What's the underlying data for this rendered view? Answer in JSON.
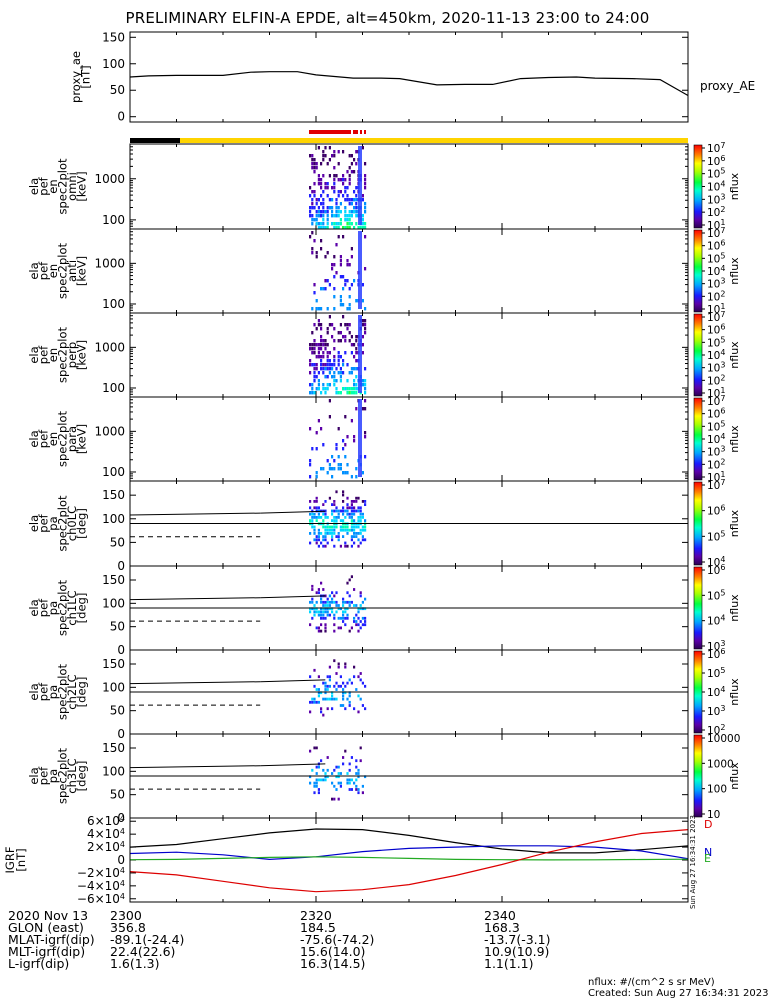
{
  "title": "PRELIMINARY ELFIN-A EPDE, alt=450km, 2020-11-13 23:00 to 24:00",
  "chart_data": {
    "type": "line",
    "time_axis": {
      "start": "2020-11-13 23:00",
      "end": "2020-11-14 00:00",
      "tick_labels": [
        "2300",
        "2320",
        "2340"
      ]
    },
    "panels": [
      {
        "id": "proxy_ae",
        "type": "line",
        "ylabel_lines": [
          "proxy_ae",
          "[nT]"
        ],
        "yticks": [
          "0",
          "50",
          "100",
          "150"
        ],
        "ylim": [
          -10,
          160
        ],
        "series": [
          {
            "name": "proxy_AE",
            "x_min": [
              0,
              2,
              5,
              10,
              13,
              15,
              18,
              20,
              24,
              27,
              29,
              33,
              36,
              39,
              42,
              45,
              48,
              50,
              54,
              57,
              60
            ],
            "y": [
              75,
              77,
              78,
              78,
              84,
              85,
              85,
              79,
              73,
              73,
              72,
              60,
              61,
              61,
              72,
              74,
              75,
              73,
              72,
              70,
              40
            ]
          }
        ]
      },
      {
        "id": "en-omni",
        "type": "heatmap",
        "ylabel_lines": [
          "ela",
          "pef",
          "en",
          "spec2plot",
          "omni",
          "[keV]"
        ],
        "yticks": [
          "100",
          "1000"
        ],
        "yscale": "log",
        "ylim": [
          60,
          7000
        ],
        "colorbar": {
          "label": "nflux",
          "ticks": [
            "10^1",
            "10^2",
            "10^3",
            "10^4",
            "10^5",
            "10^6",
            "10^7"
          ]
        }
      },
      {
        "id": "en-anti",
        "type": "heatmap",
        "ylabel_lines": [
          "ela",
          "pef",
          "en",
          "spec2plot",
          "anti",
          "[keV]"
        ],
        "yticks": [
          "100",
          "1000"
        ],
        "yscale": "log",
        "ylim": [
          60,
          7000
        ],
        "colorbar": {
          "label": "nflux",
          "ticks": [
            "10^1",
            "10^2",
            "10^3",
            "10^4",
            "10^5",
            "10^6",
            "10^7"
          ]
        }
      },
      {
        "id": "en-perp",
        "type": "heatmap",
        "ylabel_lines": [
          "ela",
          "pef",
          "en",
          "spec2plot",
          "perp",
          "[keV]"
        ],
        "yticks": [
          "100",
          "1000"
        ],
        "yscale": "log",
        "ylim": [
          60,
          7000
        ],
        "colorbar": {
          "label": "nflux",
          "ticks": [
            "10^1",
            "10^2",
            "10^3",
            "10^4",
            "10^5",
            "10^6",
            "10^7"
          ]
        }
      },
      {
        "id": "en-para",
        "type": "heatmap",
        "ylabel_lines": [
          "ela",
          "pef",
          "en",
          "spec2plot",
          "para",
          "[keV]"
        ],
        "yticks": [
          "100",
          "1000"
        ],
        "yscale": "log",
        "ylim": [
          60,
          7000
        ],
        "colorbar": {
          "label": "nflux",
          "ticks": [
            "10^1",
            "10^2",
            "10^3",
            "10^4",
            "10^5",
            "10^6",
            "10^7"
          ]
        }
      },
      {
        "id": "pa-ch0",
        "type": "heatmap",
        "ylabel_lines": [
          "ela",
          "pef",
          "pa",
          "spec2plot",
          "ch0LC",
          "[deg]"
        ],
        "yticks": [
          "0",
          "50",
          "100",
          "150"
        ],
        "ylim": [
          0,
          180
        ],
        "colorbar": {
          "label": "nflux",
          "ticks": [
            "10^4",
            "10^5",
            "10^6",
            "10^7"
          ]
        }
      },
      {
        "id": "pa-ch1",
        "type": "heatmap",
        "ylabel_lines": [
          "ela",
          "pef",
          "pa",
          "spec2plot",
          "ch1LC",
          "[deg]"
        ],
        "yticks": [
          "0",
          "50",
          "100",
          "150"
        ],
        "ylim": [
          0,
          180
        ],
        "colorbar": {
          "label": "nflux",
          "ticks": [
            "10^3",
            "10^4",
            "10^5",
            "10^6"
          ]
        }
      },
      {
        "id": "pa-ch2",
        "type": "heatmap",
        "ylabel_lines": [
          "ela",
          "pef",
          "pa",
          "spec2plot",
          "ch2LC",
          "[deg]"
        ],
        "yticks": [
          "0",
          "50",
          "100",
          "150"
        ],
        "ylim": [
          0,
          180
        ],
        "colorbar": {
          "label": "nflux",
          "ticks": [
            "10^2",
            "10^3",
            "10^4",
            "10^5",
            "10^6"
          ]
        }
      },
      {
        "id": "pa-ch3",
        "type": "heatmap",
        "ylabel_lines": [
          "ela",
          "pef",
          "pa",
          "spec2plot",
          "ch3LC",
          "[deg]"
        ],
        "yticks": [
          "0",
          "50",
          "100",
          "150"
        ],
        "ylim": [
          0,
          180
        ],
        "colorbar": {
          "label": "nflux",
          "ticks": [
            "10",
            "100",
            "1000",
            "10000"
          ]
        }
      },
      {
        "id": "igrf",
        "type": "line",
        "ylabel_lines": [
          "IGRF",
          "[nT]"
        ],
        "yticks": [
          "6×10^4",
          "4×10^4",
          "2×10^4",
          "0",
          "−2×10^4",
          "−4×10^4",
          "−6×10^4"
        ],
        "ylim": [
          -65000,
          65000
        ],
        "legend": [
          "D",
          "N",
          "E"
        ],
        "series": [
          {
            "name": "",
            "color": "#000000",
            "x_min": [
              0,
              5,
              10,
              15,
              20,
              25,
              30,
              35,
              40,
              45,
              50,
              55,
              60
            ],
            "y": [
              20000,
              24000,
              33000,
              42000,
              48000,
              47000,
              38000,
              27000,
              17000,
              11000,
              11000,
              16000,
              22000
            ]
          },
          {
            "name": "",
            "color": "#0000cc",
            "x_min": [
              0,
              5,
              10,
              15,
              20,
              25,
              30,
              35,
              40,
              45,
              50,
              55,
              60
            ],
            "y": [
              10000,
              12000,
              8000,
              1000,
              5000,
              13000,
              18000,
              20000,
              22000,
              22000,
              20000,
              14000,
              2000
            ]
          },
          {
            "name": "",
            "color": "#22aa22",
            "x_min": [
              0,
              5,
              10,
              15,
              20,
              25,
              30,
              35,
              40,
              45,
              50,
              55,
              60
            ],
            "y": [
              500,
              1000,
              2500,
              4000,
              5000,
              4000,
              2500,
              1000,
              400,
              200,
              300,
              800,
              1200
            ]
          },
          {
            "name": "",
            "color": "#dd0000",
            "x_min": [
              0,
              5,
              10,
              15,
              20,
              25,
              30,
              35,
              40,
              45,
              50,
              55,
              60
            ],
            "y": [
              -18000,
              -23000,
              -33000,
              -43000,
              -49000,
              -46000,
              -38000,
              -24000,
              -7000,
              12000,
              28000,
              41000,
              47000
            ]
          }
        ]
      }
    ]
  },
  "footer": {
    "rows": [
      [
        "2020 Nov 13",
        "2300",
        "2320",
        "2340"
      ],
      [
        "GLON (east)",
        "356.8",
        "184.5",
        "168.3"
      ],
      [
        "MLAT-igrf(dip)",
        "-89.1(-24.4)",
        "-75.6(-74.2)",
        "-13.7(-3.1)"
      ],
      [
        "MLT-igrf(dip)",
        "22.4(22.6)",
        "15.6(14.0)",
        "10.9(10.9)"
      ],
      [
        "L-igrf(dip)",
        "1.6(1.3)",
        "16.3(14.5)",
        "1.1(1.1)"
      ]
    ],
    "unit_note": "nflux: #/(cm^2 s sr MeV)",
    "created": "Created: Sun Aug 27 16:34:31 2023",
    "side_stamp": "Sun Aug 27 16:34:31 2023"
  }
}
